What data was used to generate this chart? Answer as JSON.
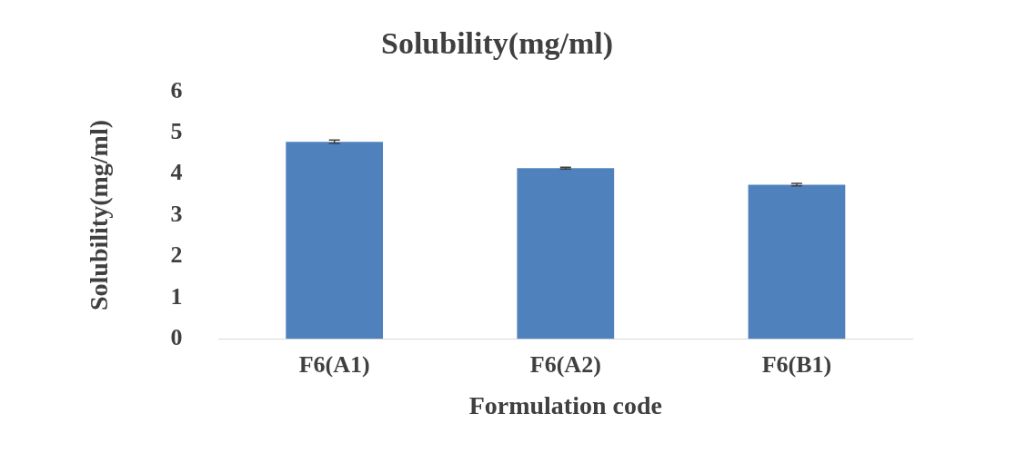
{
  "chart_data": {
    "type": "bar",
    "title": "Solubility(mg/ml)",
    "xlabel": "Formulation code",
    "ylabel": "Solubility(mg/ml)",
    "categories": [
      "F6(A1)",
      "F6(A2)",
      "F6(B1)"
    ],
    "series": [
      {
        "color": "#4f81bd",
        "values": [
          4.78,
          4.14,
          3.74
        ],
        "errors": [
          0.04,
          0.02,
          0.03
        ]
      }
    ],
    "ylim": [
      0,
      6
    ],
    "yticks": [
      0,
      1,
      2,
      3,
      4,
      5,
      6
    ],
    "grid": false,
    "legend": false
  }
}
